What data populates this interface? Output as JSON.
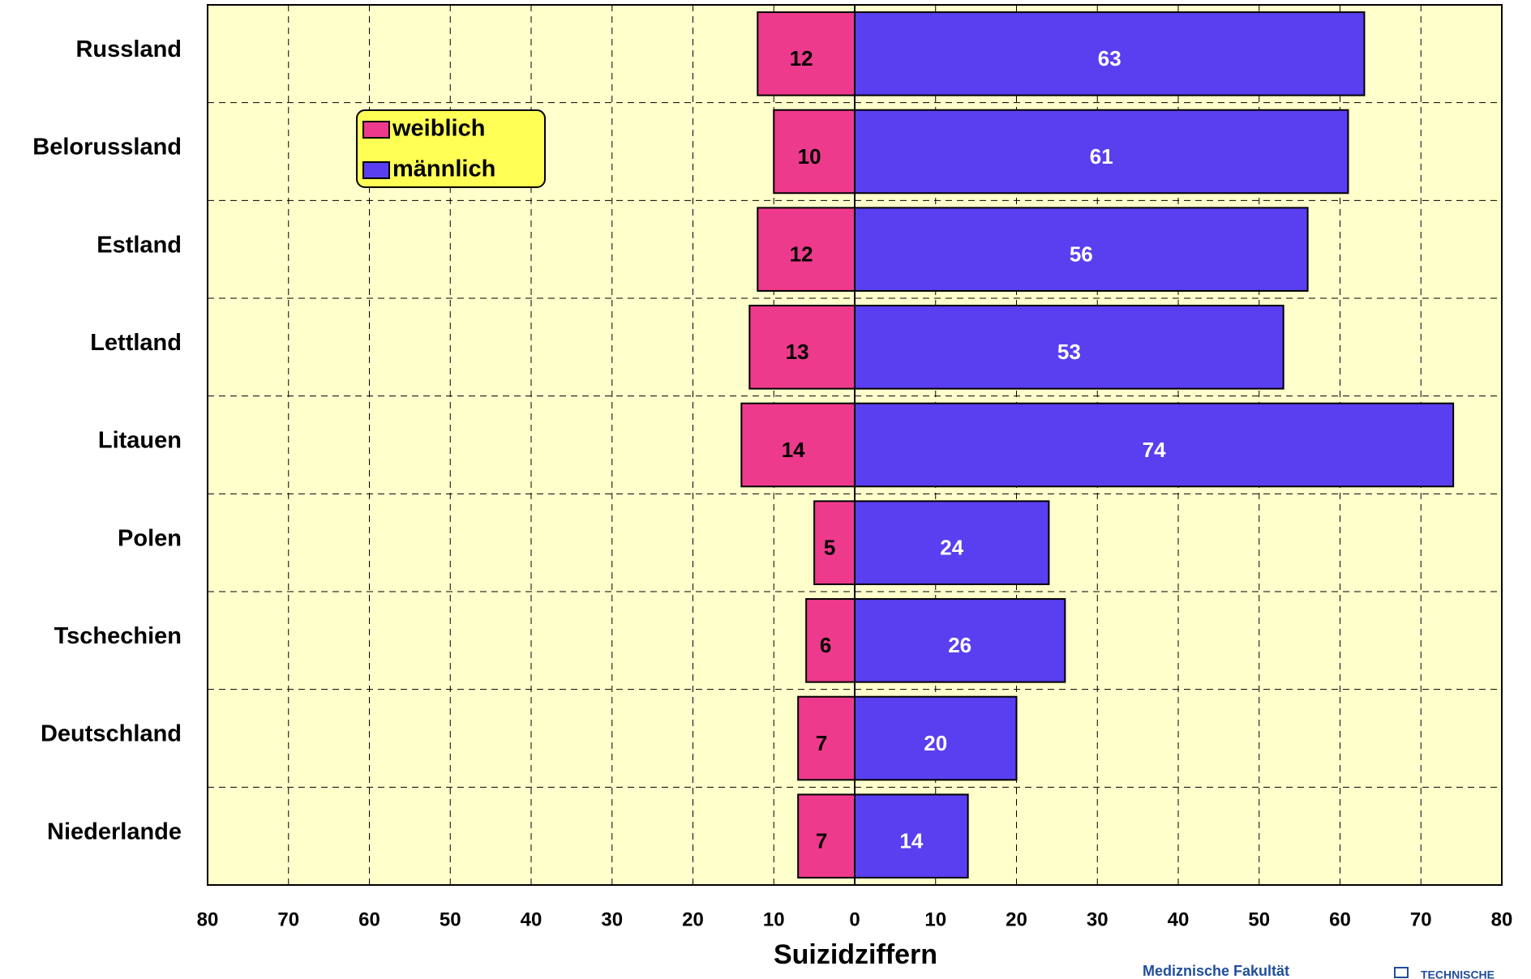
{
  "chart_data": {
    "type": "butterfly",
    "title": "Suizidziffern",
    "categories": [
      "Russland",
      "Belorussland",
      "Estland",
      "Lettland",
      "Litauen",
      "Polen",
      "Tschechien",
      "Deutschland",
      "Niederlande"
    ],
    "series": [
      {
        "name": "weiblich",
        "color": "#ee3a8c",
        "values": [
          -12,
          -10,
          -12,
          -13,
          -14,
          -5,
          -6,
          -7,
          -7
        ],
        "value_labels": [
          "12",
          "10",
          "12",
          "13",
          "14",
          "5",
          "6",
          "7",
          "7"
        ]
      },
      {
        "name": "männlich",
        "color": "#5a3ff0",
        "values": [
          63,
          61,
          56,
          53,
          74,
          24,
          26,
          20,
          14
        ]
      }
    ],
    "xlim": [
      -80,
      80
    ],
    "xticks": [
      {
        "value": -80,
        "label": "80"
      },
      {
        "value": -70,
        "label": "70"
      },
      {
        "value": -60,
        "label": "60"
      },
      {
        "value": -50,
        "label": "50"
      },
      {
        "value": -40,
        "label": "40"
      },
      {
        "value": -30,
        "label": "30"
      },
      {
        "value": -20,
        "label": "20"
      },
      {
        "value": -10,
        "label": "10"
      },
      0,
      10,
      20,
      30,
      40,
      50,
      60,
      70,
      80
    ],
    "grid": true,
    "legend": "upper left",
    "footer": [
      "Mediznische Fakultät",
      "TECHNISCHE"
    ]
  }
}
